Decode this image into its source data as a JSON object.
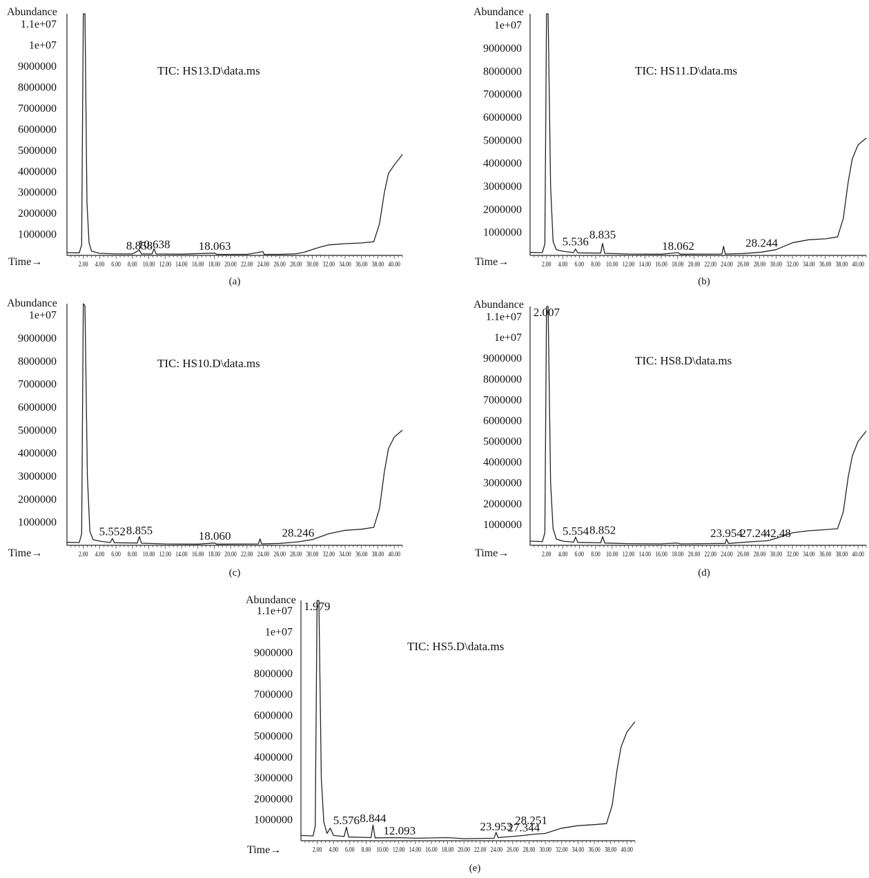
{
  "chart_data": [
    {
      "id": "a",
      "type": "line",
      "title": "TIC: HS13.D\\data.ms",
      "caption": "(a)",
      "ylabel": "Abundance",
      "xlabel": "Time→",
      "ylim": [
        0,
        11500000
      ],
      "xlim": [
        0,
        41
      ],
      "yticks": [
        {
          "v": 11000000,
          "label": "1.1e+07"
        },
        {
          "v": 10000000,
          "label": "1e+07"
        },
        {
          "v": 9000000,
          "label": "9000000"
        },
        {
          "v": 8000000,
          "label": "8000000"
        },
        {
          "v": 7000000,
          "label": "7000000"
        },
        {
          "v": 6000000,
          "label": "6000000"
        },
        {
          "v": 5000000,
          "label": "5000000"
        },
        {
          "v": 4000000,
          "label": "4000000"
        },
        {
          "v": 3000000,
          "label": "3000000"
        },
        {
          "v": 2000000,
          "label": "2000000"
        },
        {
          "v": 1000000,
          "label": "1000000"
        }
      ],
      "xticks": [
        "2.00",
        "4.00",
        "6.00",
        "8.00",
        "10.00",
        "12.00",
        "14.00",
        "16.00",
        "18.00",
        "20.00",
        "22.00",
        "24.00",
        "26.00",
        "28.00",
        "30.00",
        "32.00",
        "34.00",
        "36.00",
        "38.00",
        "40.00"
      ],
      "peak_labels": [
        {
          "label": "8.858",
          "x": 8.858,
          "y": 80000
        },
        {
          "label": "10.638",
          "x": 10.638,
          "y": 150000
        },
        {
          "label": "18.063",
          "x": 18.063,
          "y": 60000
        }
      ],
      "points": [
        [
          0,
          130000
        ],
        [
          1.5,
          120000
        ],
        [
          1.8,
          500000
        ],
        [
          2.0,
          11700000
        ],
        [
          2.2,
          11600000
        ],
        [
          2.45,
          2500000
        ],
        [
          2.7,
          600000
        ],
        [
          3.0,
          200000
        ],
        [
          4,
          100000
        ],
        [
          6,
          70000
        ],
        [
          8,
          70000
        ],
        [
          8.85,
          250000
        ],
        [
          9.1,
          70000
        ],
        [
          10.4,
          70000
        ],
        [
          10.64,
          320000
        ],
        [
          10.9,
          70000
        ],
        [
          14,
          60000
        ],
        [
          18.06,
          110000
        ],
        [
          18.3,
          50000
        ],
        [
          22,
          50000
        ],
        [
          23.95,
          180000
        ],
        [
          24.1,
          50000
        ],
        [
          26,
          50000
        ],
        [
          28,
          80000
        ],
        [
          29,
          150000
        ],
        [
          30,
          280000
        ],
        [
          31,
          400000
        ],
        [
          32,
          500000
        ],
        [
          34,
          560000
        ],
        [
          36,
          590000
        ],
        [
          37.5,
          650000
        ],
        [
          38.2,
          1500000
        ],
        [
          38.8,
          3000000
        ],
        [
          39.3,
          3900000
        ],
        [
          40,
          4300000
        ],
        [
          41,
          4800000
        ]
      ]
    },
    {
      "id": "b",
      "type": "line",
      "title": "TIC: HS11.D\\data.ms",
      "caption": "(b)",
      "ylabel": "Abundance",
      "xlabel": "Time→",
      "ylim": [
        0,
        10500000
      ],
      "xlim": [
        0,
        41
      ],
      "yticks": [
        {
          "v": 10000000,
          "label": "1e+07"
        },
        {
          "v": 9000000,
          "label": "9000000"
        },
        {
          "v": 8000000,
          "label": "8000000"
        },
        {
          "v": 7000000,
          "label": "7000000"
        },
        {
          "v": 6000000,
          "label": "6000000"
        },
        {
          "v": 5000000,
          "label": "5000000"
        },
        {
          "v": 4000000,
          "label": "4000000"
        },
        {
          "v": 3000000,
          "label": "3000000"
        },
        {
          "v": 2000000,
          "label": "2000000"
        },
        {
          "v": 1000000,
          "label": "1000000"
        }
      ],
      "xticks": [
        "2.00",
        "4.00",
        "6.00",
        "8.00",
        "10.00",
        "12.00",
        "14.00",
        "16.00",
        "18.00",
        "20.00",
        "22.00",
        "24.00",
        "26.00",
        "28.00",
        "30.00",
        "32.00",
        "34.00",
        "36.00",
        "38.00",
        "40.00"
      ],
      "peak_labels": [
        {
          "label": "5.536",
          "x": 5.536,
          "y": 250000
        },
        {
          "label": "8.835",
          "x": 8.835,
          "y": 550000
        },
        {
          "label": "18.062",
          "x": 18.062,
          "y": 60000
        },
        {
          "label": "28.244",
          "x": 28.244,
          "y": 200000
        }
      ],
      "points": [
        [
          0,
          130000
        ],
        [
          1.5,
          120000
        ],
        [
          1.8,
          500000
        ],
        [
          2.0,
          10700000
        ],
        [
          2.2,
          10500000
        ],
        [
          2.5,
          3000000
        ],
        [
          2.8,
          600000
        ],
        [
          3.2,
          250000
        ],
        [
          4,
          180000
        ],
        [
          5.3,
          120000
        ],
        [
          5.54,
          280000
        ],
        [
          5.8,
          110000
        ],
        [
          8.6,
          100000
        ],
        [
          8.84,
          520000
        ],
        [
          9.1,
          90000
        ],
        [
          12,
          60000
        ],
        [
          16,
          50000
        ],
        [
          18.06,
          120000
        ],
        [
          18.3,
          50000
        ],
        [
          23.4,
          60000
        ],
        [
          23.6,
          400000
        ],
        [
          23.8,
          60000
        ],
        [
          26,
          80000
        ],
        [
          28.24,
          140000
        ],
        [
          30,
          250000
        ],
        [
          32,
          550000
        ],
        [
          34,
          680000
        ],
        [
          36,
          720000
        ],
        [
          37.5,
          800000
        ],
        [
          38.2,
          1600000
        ],
        [
          38.8,
          3200000
        ],
        [
          39.3,
          4200000
        ],
        [
          40,
          4800000
        ],
        [
          41,
          5100000
        ]
      ]
    },
    {
      "id": "c",
      "type": "line",
      "title": "TIC: HS10.D\\data.ms",
      "caption": "(c)",
      "ylabel": "Abundance",
      "xlabel": "Time→",
      "ylim": [
        0,
        10500000
      ],
      "xlim": [
        0,
        41
      ],
      "yticks": [
        {
          "v": 10000000,
          "label": "1e+07"
        },
        {
          "v": 9000000,
          "label": "9000000"
        },
        {
          "v": 8000000,
          "label": "8000000"
        },
        {
          "v": 7000000,
          "label": "7000000"
        },
        {
          "v": 6000000,
          "label": "6000000"
        },
        {
          "v": 5000000,
          "label": "5000000"
        },
        {
          "v": 4000000,
          "label": "4000000"
        },
        {
          "v": 3000000,
          "label": "3000000"
        },
        {
          "v": 2000000,
          "label": "2000000"
        },
        {
          "v": 1000000,
          "label": "1000000"
        }
      ],
      "xticks": [
        "2.00",
        "4.00",
        "6.00",
        "8.00",
        "10.00",
        "12.00",
        "14.00",
        "16.00",
        "18.00",
        "20.00",
        "22.00",
        "24.00",
        "26.00",
        "28.00",
        "30.00",
        "32.00",
        "34.00",
        "36.00",
        "38.00",
        "40.00"
      ],
      "peak_labels": [
        {
          "label": "5.552",
          "x": 5.552,
          "y": 250000
        },
        {
          "label": "8.855",
          "x": 8.855,
          "y": 300000
        },
        {
          "label": "18.060",
          "x": 18.06,
          "y": 60000
        },
        {
          "label": "28.246",
          "x": 28.246,
          "y": 200000
        }
      ],
      "points": [
        [
          0,
          130000
        ],
        [
          1.5,
          120000
        ],
        [
          1.8,
          500000
        ],
        [
          2.0,
          10600000
        ],
        [
          2.2,
          10400000
        ],
        [
          2.5,
          3000000
        ],
        [
          2.8,
          600000
        ],
        [
          3.2,
          250000
        ],
        [
          4,
          180000
        ],
        [
          5.3,
          120000
        ],
        [
          5.55,
          300000
        ],
        [
          5.8,
          110000
        ],
        [
          8.6,
          100000
        ],
        [
          8.86,
          380000
        ],
        [
          9.1,
          90000
        ],
        [
          12,
          60000
        ],
        [
          16,
          50000
        ],
        [
          18.06,
          100000
        ],
        [
          18.3,
          50000
        ],
        [
          23.4,
          60000
        ],
        [
          23.6,
          280000
        ],
        [
          23.8,
          60000
        ],
        [
          26,
          80000
        ],
        [
          28.25,
          150000
        ],
        [
          30,
          250000
        ],
        [
          32,
          500000
        ],
        [
          34,
          650000
        ],
        [
          36,
          700000
        ],
        [
          37.5,
          780000
        ],
        [
          38.2,
          1600000
        ],
        [
          38.8,
          3200000
        ],
        [
          39.3,
          4200000
        ],
        [
          40,
          4700000
        ],
        [
          41,
          5000000
        ]
      ]
    },
    {
      "id": "d",
      "type": "line",
      "title": "TIC: HS8.D\\data.ms",
      "caption": "(d)",
      "ylabel": "Abundance",
      "xlabel": "Time→",
      "ylim": [
        0,
        11500000
      ],
      "xlim": [
        0,
        41
      ],
      "yticks": [
        {
          "v": 11000000,
          "label": "1.1e+07"
        },
        {
          "v": 10000000,
          "label": "1e+07"
        },
        {
          "v": 9000000,
          "label": "9000000"
        },
        {
          "v": 8000000,
          "label": "8000000"
        },
        {
          "v": 7000000,
          "label": "7000000"
        },
        {
          "v": 6000000,
          "label": "6000000"
        },
        {
          "v": 5000000,
          "label": "5000000"
        },
        {
          "v": 4000000,
          "label": "4000000"
        },
        {
          "v": 3000000,
          "label": "3000000"
        },
        {
          "v": 2000000,
          "label": "2000000"
        },
        {
          "v": 1000000,
          "label": "1000000"
        }
      ],
      "xticks": [
        "2.00",
        "4.00",
        "6.00",
        "8.00",
        "10.00",
        "12.00",
        "14.00",
        "16.00",
        "18.00",
        "20.00",
        "22.00",
        "24.00",
        "26.00",
        "28.00",
        "30.00",
        "32.00",
        "34.00",
        "36.00",
        "38.00",
        "40.00"
      ],
      "peak_labels": [
        {
          "label": "2.007",
          "x": 2.007,
          "y": 11600000
        },
        {
          "label": "5.554",
          "x": 5.554,
          "y": 300000
        },
        {
          "label": "8.852",
          "x": 8.852,
          "y": 350000
        },
        {
          "label": "23.954",
          "x": 23.954,
          "y": 200000
        },
        {
          "label": "27.24",
          "x": 27.24,
          "y": 200000
        },
        {
          "label": "42.48",
          "x": 30.2,
          "y": 200000
        }
      ],
      "points": [
        [
          0,
          200000
        ],
        [
          1.5,
          180000
        ],
        [
          1.8,
          600000
        ],
        [
          2.0,
          11800000
        ],
        [
          2.2,
          11700000
        ],
        [
          2.5,
          3000000
        ],
        [
          2.8,
          800000
        ],
        [
          3.2,
          300000
        ],
        [
          4,
          200000
        ],
        [
          5.3,
          150000
        ],
        [
          5.55,
          400000
        ],
        [
          5.8,
          140000
        ],
        [
          8.6,
          120000
        ],
        [
          8.85,
          420000
        ],
        [
          9.1,
          110000
        ],
        [
          12,
          80000
        ],
        [
          16,
          70000
        ],
        [
          18,
          110000
        ],
        [
          18.3,
          70000
        ],
        [
          23.8,
          90000
        ],
        [
          23.95,
          300000
        ],
        [
          24.2,
          90000
        ],
        [
          27.24,
          180000
        ],
        [
          29,
          220000
        ],
        [
          30.5,
          400000
        ],
        [
          32,
          600000
        ],
        [
          34,
          700000
        ],
        [
          36,
          750000
        ],
        [
          37.5,
          800000
        ],
        [
          38.2,
          1600000
        ],
        [
          38.8,
          3300000
        ],
        [
          39.3,
          4300000
        ],
        [
          40,
          5000000
        ],
        [
          41,
          5500000
        ]
      ]
    },
    {
      "id": "e",
      "type": "line",
      "title": "TIC: HS5.D\\data.ms",
      "caption": "(e)",
      "ylabel": "Abundance",
      "xlabel": "Time→",
      "ylim": [
        0,
        11500000
      ],
      "xlim": [
        0,
        41
      ],
      "yticks": [
        {
          "v": 11000000,
          "label": "1.1e+07"
        },
        {
          "v": 10000000,
          "label": "1e+07"
        },
        {
          "v": 9000000,
          "label": "9000000"
        },
        {
          "v": 8000000,
          "label": "8000000"
        },
        {
          "v": 7000000,
          "label": "7000000"
        },
        {
          "v": 6000000,
          "label": "6000000"
        },
        {
          "v": 5000000,
          "label": "5000000"
        },
        {
          "v": 4000000,
          "label": "4000000"
        },
        {
          "v": 3000000,
          "label": "3000000"
        },
        {
          "v": 2000000,
          "label": "2000000"
        },
        {
          "v": 1000000,
          "label": "1000000"
        }
      ],
      "xticks": [
        "2.00",
        "4.00",
        "6.00",
        "8.00",
        "10.00",
        "12.00",
        "14.00",
        "16.00",
        "18.00",
        "20.00",
        "22.00",
        "24.00",
        "26.00",
        "28.00",
        "30.00",
        "32.00",
        "34.00",
        "36.00",
        "38.00",
        "40.00"
      ],
      "peak_labels": [
        {
          "label": "1.979",
          "x": 1.979,
          "y": 11600000
        },
        {
          "label": "5.576",
          "x": 5.576,
          "y": 600000
        },
        {
          "label": "8.844",
          "x": 8.844,
          "y": 700000
        },
        {
          "label": "12.093",
          "x": 12.093,
          "y": 100000
        },
        {
          "label": "23.953",
          "x": 23.953,
          "y": 300000
        },
        {
          "label": "27.344",
          "x": 27.344,
          "y": 250000
        },
        {
          "label": "28.251",
          "x": 28.251,
          "y": 600000
        }
      ],
      "points": [
        [
          0,
          250000
        ],
        [
          1.5,
          230000
        ],
        [
          1.75,
          700000
        ],
        [
          1.98,
          11800000
        ],
        [
          2.2,
          11700000
        ],
        [
          2.5,
          3000000
        ],
        [
          2.8,
          900000
        ],
        [
          3.2,
          350000
        ],
        [
          3.6,
          600000
        ],
        [
          4,
          250000
        ],
        [
          5.3,
          200000
        ],
        [
          5.58,
          650000
        ],
        [
          5.85,
          180000
        ],
        [
          8.6,
          150000
        ],
        [
          8.84,
          750000
        ],
        [
          9.1,
          140000
        ],
        [
          12.09,
          150000
        ],
        [
          14,
          120000
        ],
        [
          18,
          150000
        ],
        [
          20,
          100000
        ],
        [
          23.7,
          120000
        ],
        [
          23.95,
          400000
        ],
        [
          24.2,
          150000
        ],
        [
          27.34,
          250000
        ],
        [
          28.25,
          300000
        ],
        [
          30,
          350000
        ],
        [
          32,
          600000
        ],
        [
          34,
          720000
        ],
        [
          36,
          770000
        ],
        [
          37.5,
          820000
        ],
        [
          38.2,
          1700000
        ],
        [
          38.8,
          3400000
        ],
        [
          39.3,
          4500000
        ],
        [
          40,
          5200000
        ],
        [
          41,
          5700000
        ]
      ]
    }
  ]
}
